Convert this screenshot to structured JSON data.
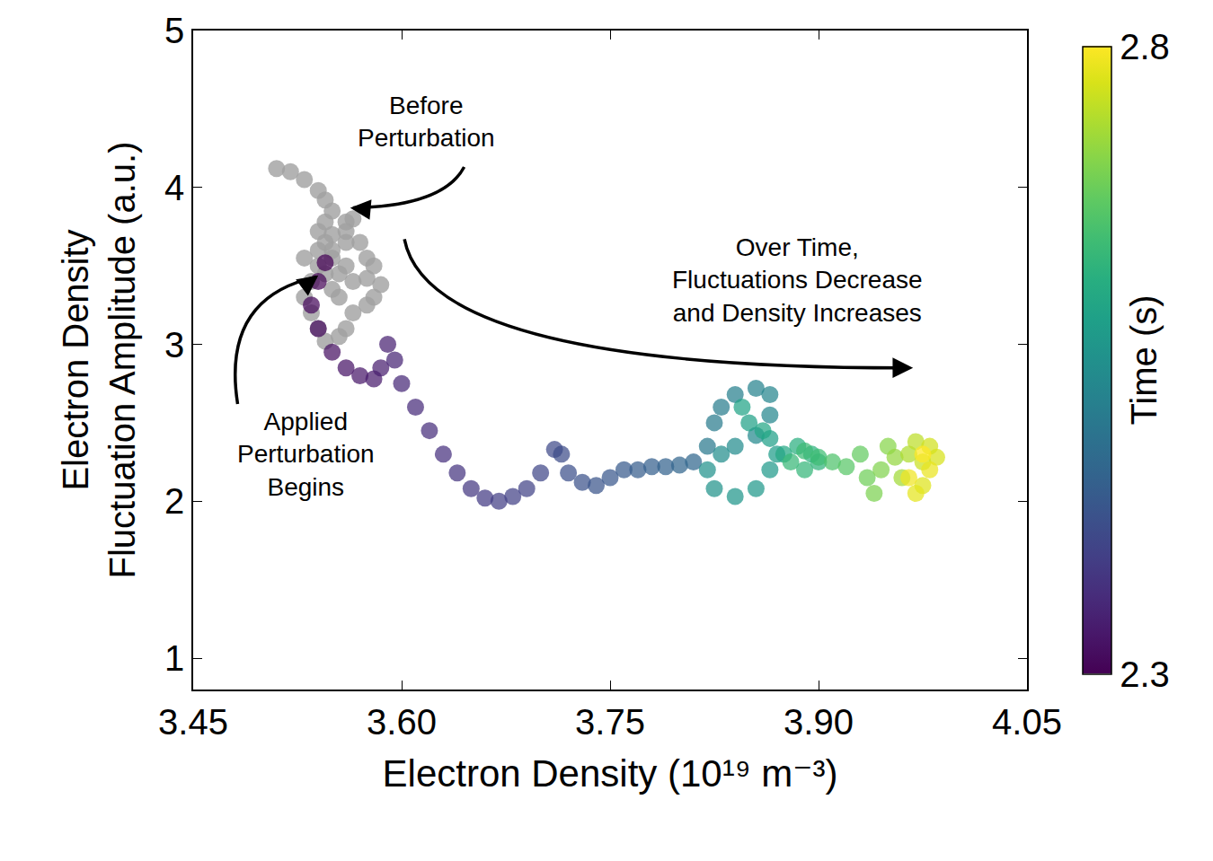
{
  "chart_data": {
    "type": "scatter",
    "xlabel": "Electron Density (10¹⁹ m⁻³)",
    "ylabel": "Electron Density\nFluctuation Amplitude (a.u.)",
    "xlim": [
      3.45,
      4.05
    ],
    "xticks": [
      {
        "value": 3.45,
        "label": "3.45"
      },
      {
        "value": 3.6,
        "label": "3.60"
      },
      {
        "value": 3.75,
        "label": "3.75"
      },
      {
        "value": 3.9,
        "label": "3.90"
      },
      {
        "value": 4.05,
        "label": "4.05"
      }
    ],
    "ylim": [
      0.8,
      5
    ],
    "yticks": [
      1,
      2,
      3,
      4,
      5
    ],
    "grid": false,
    "series": [
      {
        "color": "#a0a0a0",
        "marker": "circle",
        "x": [
          3.51,
          3.52,
          3.53,
          3.54,
          3.545,
          3.55,
          3.545,
          3.54,
          3.55,
          3.56,
          3.565,
          3.56,
          3.57,
          3.575,
          3.58,
          3.575,
          3.585,
          3.58,
          3.575,
          3.565,
          3.56,
          3.555,
          3.545,
          3.54,
          3.535,
          3.53,
          3.535,
          3.54,
          3.55,
          3.56,
          3.565,
          3.555,
          3.55,
          3.545,
          3.55,
          3.56,
          3.54,
          3.53,
          3.545,
          3.555
        ],
        "y": [
          4.12,
          4.1,
          4.05,
          3.98,
          3.92,
          3.85,
          3.78,
          3.72,
          3.7,
          3.78,
          3.8,
          3.72,
          3.65,
          3.55,
          3.5,
          3.42,
          3.38,
          3.3,
          3.25,
          3.2,
          3.1,
          3.05,
          3.02,
          3.1,
          3.2,
          3.3,
          3.4,
          3.5,
          3.55,
          3.5,
          3.4,
          3.3,
          3.35,
          3.45,
          3.6,
          3.65,
          3.6,
          3.55,
          3.65,
          3.45
        ]
      },
      {
        "color": "viridis",
        "marker": "circle",
        "x": [
          3.545,
          3.54,
          3.535,
          3.54,
          3.55,
          3.56,
          3.57,
          3.58,
          3.585,
          3.59,
          3.595,
          3.6,
          3.61,
          3.62,
          3.63,
          3.64,
          3.65,
          3.66,
          3.67,
          3.68,
          3.69,
          3.7,
          3.71,
          3.715,
          3.72,
          3.73,
          3.74,
          3.75,
          3.76,
          3.77,
          3.78,
          3.79,
          3.8,
          3.81,
          3.82,
          3.825,
          3.83,
          3.84,
          3.855,
          3.865,
          3.865,
          3.855,
          3.84,
          3.83,
          3.82,
          3.825,
          3.84,
          3.855,
          3.865,
          3.87,
          3.865,
          3.85,
          3.845,
          3.86,
          3.875,
          3.885,
          3.895,
          3.9,
          3.89,
          3.88,
          3.89,
          3.9,
          3.91,
          3.92,
          3.93,
          3.935,
          3.94,
          3.945,
          3.95,
          3.955,
          3.96,
          3.965,
          3.97,
          3.975,
          3.98,
          3.985,
          3.975,
          3.97,
          3.98,
          3.965,
          3.975
        ],
        "y": [
          3.52,
          3.4,
          3.25,
          3.1,
          2.95,
          2.85,
          2.8,
          2.78,
          2.85,
          3.0,
          2.9,
          2.75,
          2.6,
          2.45,
          2.3,
          2.18,
          2.08,
          2.02,
          2.0,
          2.03,
          2.08,
          2.18,
          2.33,
          2.3,
          2.18,
          2.12,
          2.1,
          2.15,
          2.2,
          2.2,
          2.22,
          2.22,
          2.23,
          2.25,
          2.35,
          2.5,
          2.6,
          2.68,
          2.72,
          2.68,
          2.55,
          2.42,
          2.35,
          2.3,
          2.2,
          2.08,
          2.03,
          2.08,
          2.2,
          2.3,
          2.4,
          2.5,
          2.6,
          2.45,
          2.3,
          2.35,
          2.3,
          2.25,
          2.2,
          2.25,
          2.32,
          2.28,
          2.25,
          2.22,
          2.3,
          2.15,
          2.05,
          2.2,
          2.35,
          2.28,
          2.15,
          2.3,
          2.38,
          2.25,
          2.35,
          2.28,
          2.1,
          2.05,
          2.2,
          2.15,
          2.3
        ],
        "time": [
          2.3,
          2.305,
          2.31,
          2.315,
          2.32,
          2.325,
          2.33,
          2.335,
          2.34,
          2.345,
          2.35,
          2.355,
          2.36,
          2.365,
          2.37,
          2.375,
          2.38,
          2.385,
          2.39,
          2.395,
          2.4,
          2.405,
          2.41,
          2.415,
          2.42,
          2.425,
          2.43,
          2.435,
          2.44,
          2.445,
          2.45,
          2.455,
          2.46,
          2.465,
          2.5,
          2.505,
          2.51,
          2.515,
          2.52,
          2.525,
          2.53,
          2.535,
          2.54,
          2.545,
          2.55,
          2.555,
          2.56,
          2.565,
          2.57,
          2.575,
          2.58,
          2.585,
          2.59,
          2.595,
          2.6,
          2.615,
          2.62,
          2.625,
          2.63,
          2.635,
          2.64,
          2.645,
          2.66,
          2.67,
          2.68,
          2.69,
          2.7,
          2.705,
          2.71,
          2.72,
          2.73,
          2.74,
          2.75,
          2.76,
          2.765,
          2.77,
          2.775,
          2.78,
          2.785,
          2.79,
          2.8
        ]
      }
    ],
    "colorbar": {
      "title": "Time (s)",
      "range": [
        2.3,
        2.8
      ],
      "ticks": [
        2.3,
        2.8
      ]
    },
    "annotations": [
      {
        "text": "Before\nPerturbation"
      },
      {
        "text": "Applied\nPerturbation\nBegins"
      },
      {
        "text": "Over Time,\nFluctuations Decrease\nand Density Increases"
      }
    ]
  }
}
